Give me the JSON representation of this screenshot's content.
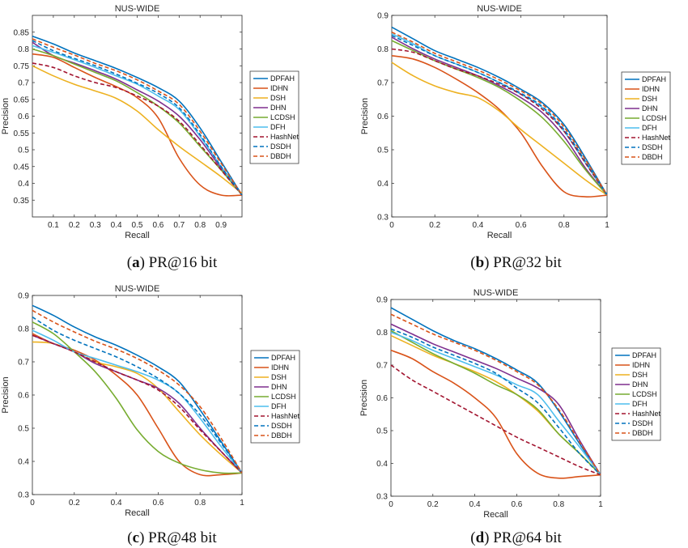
{
  "colors": {
    "DPFAH": "#0072BD",
    "IDHN": "#D95319",
    "DSH": "#EDB120",
    "DHN": "#7E2F8E",
    "LCDSH": "#77AC30",
    "DFH": "#4DBEEE",
    "HashNet": "#A2142F",
    "DSDH": "#0072BD",
    "DBDH": "#D95319"
  },
  "dashed": [
    "HashNet",
    "DSDH",
    "DBDH"
  ],
  "captions": [
    {
      "letter": "a",
      "text": "PR@16 bit"
    },
    {
      "letter": "b",
      "text": "PR@32 bit"
    },
    {
      "letter": "c",
      "text": "PR@48 bit"
    },
    {
      "letter": "d",
      "text": "PR@64 bit"
    }
  ],
  "chart_data": [
    {
      "type": "line",
      "title": "NUS-WIDE",
      "xlabel": "Recall",
      "ylabel": "Precision",
      "xlim": [
        0,
        1
      ],
      "ylim": [
        0.3,
        0.9
      ],
      "xticks": [
        0.1,
        0.2,
        0.3,
        0.4,
        0.5,
        0.6,
        0.7,
        0.8,
        0.9
      ],
      "xtick_labels": [
        "0.1",
        "0.2",
        "0.3",
        "0.4",
        "0.5",
        "0.6",
        "0.7",
        "0.8",
        "0.9"
      ],
      "yticks": [
        0.35,
        0.4,
        0.45,
        0.5,
        0.55,
        0.6,
        0.65,
        0.7,
        0.75,
        0.8,
        0.85
      ],
      "ytick_labels": [
        "0.35",
        "0.4",
        "0.45",
        "0.5",
        "0.55",
        "0.6",
        "0.65",
        "0.7",
        "0.75",
        "0.8",
        "0.85"
      ],
      "legend": "right",
      "x": [
        0,
        0.1,
        0.2,
        0.3,
        0.4,
        0.5,
        0.6,
        0.7,
        0.8,
        0.9,
        1.0
      ],
      "series": [
        {
          "name": "DPFAH",
          "values": [
            0.838,
            0.815,
            0.788,
            0.765,
            0.742,
            0.715,
            0.685,
            0.645,
            0.565,
            0.465,
            0.365
          ]
        },
        {
          "name": "IDHN",
          "values": [
            0.785,
            0.775,
            0.745,
            0.715,
            0.688,
            0.655,
            0.595,
            0.475,
            0.395,
            0.365,
            0.365
          ]
        },
        {
          "name": "DSH",
          "values": [
            0.75,
            0.72,
            0.695,
            0.675,
            0.653,
            0.615,
            0.56,
            0.51,
            0.465,
            0.42,
            0.37
          ]
        },
        {
          "name": "DHN",
          "values": [
            0.82,
            0.78,
            0.758,
            0.735,
            0.71,
            0.678,
            0.645,
            0.6,
            0.53,
            0.445,
            0.365
          ]
        },
        {
          "name": "LCDSH",
          "values": [
            0.8,
            0.78,
            0.755,
            0.73,
            0.705,
            0.67,
            0.63,
            0.58,
            0.51,
            0.44,
            0.365
          ]
        },
        {
          "name": "DFH",
          "values": [
            0.81,
            0.79,
            0.768,
            0.745,
            0.72,
            0.695,
            0.66,
            0.62,
            0.54,
            0.45,
            0.365
          ]
        },
        {
          "name": "HashNet",
          "values": [
            0.758,
            0.745,
            0.72,
            0.7,
            0.685,
            0.66,
            0.63,
            0.585,
            0.515,
            0.44,
            0.365
          ]
        },
        {
          "name": "DSDH",
          "values": [
            0.825,
            0.795,
            0.772,
            0.75,
            0.725,
            0.698,
            0.668,
            0.625,
            0.545,
            0.45,
            0.365
          ]
        },
        {
          "name": "DBDH",
          "values": [
            0.83,
            0.805,
            0.782,
            0.757,
            0.735,
            0.708,
            0.675,
            0.635,
            0.555,
            0.46,
            0.365
          ]
        }
      ]
    },
    {
      "type": "line",
      "title": "NUS-WIDE",
      "xlabel": "Recall",
      "ylabel": "Precision",
      "xlim": [
        0,
        1
      ],
      "ylim": [
        0.3,
        0.9
      ],
      "xticks": [
        0,
        0.2,
        0.4,
        0.6,
        0.8,
        1
      ],
      "xtick_labels": [
        "0",
        "0.2",
        "0.4",
        "0.6",
        "0.8",
        "1"
      ],
      "yticks": [
        0.3,
        0.4,
        0.5,
        0.6,
        0.7,
        0.8,
        0.9
      ],
      "ytick_labels": [
        "0.3",
        "0.4",
        "0.5",
        "0.6",
        "0.7",
        "0.8",
        "0.9"
      ],
      "legend": "right",
      "x": [
        0,
        0.1,
        0.2,
        0.3,
        0.4,
        0.5,
        0.6,
        0.7,
        0.8,
        0.9,
        1.0
      ],
      "series": [
        {
          "name": "DPFAH",
          "values": [
            0.865,
            0.83,
            0.795,
            0.77,
            0.745,
            0.715,
            0.68,
            0.64,
            0.575,
            0.475,
            0.365
          ]
        },
        {
          "name": "IDHN",
          "values": [
            0.78,
            0.77,
            0.745,
            0.71,
            0.67,
            0.62,
            0.55,
            0.45,
            0.375,
            0.36,
            0.365
          ]
        },
        {
          "name": "DSH",
          "values": [
            0.76,
            0.72,
            0.69,
            0.67,
            0.655,
            0.615,
            0.56,
            0.51,
            0.46,
            0.41,
            0.365
          ]
        },
        {
          "name": "DHN",
          "values": [
            0.835,
            0.8,
            0.77,
            0.745,
            0.72,
            0.69,
            0.655,
            0.61,
            0.54,
            0.445,
            0.365
          ]
        },
        {
          "name": "LCDSH",
          "values": [
            0.825,
            0.795,
            0.765,
            0.74,
            0.715,
            0.685,
            0.645,
            0.595,
            0.525,
            0.44,
            0.365
          ]
        },
        {
          "name": "DFH",
          "values": [
            0.845,
            0.815,
            0.78,
            0.755,
            0.73,
            0.7,
            0.665,
            0.625,
            0.555,
            0.46,
            0.365
          ]
        },
        {
          "name": "HashNet",
          "values": [
            0.8,
            0.79,
            0.765,
            0.74,
            0.72,
            0.695,
            0.665,
            0.62,
            0.555,
            0.46,
            0.365
          ]
        },
        {
          "name": "DSDH",
          "values": [
            0.84,
            0.81,
            0.78,
            0.755,
            0.73,
            0.7,
            0.668,
            0.628,
            0.56,
            0.465,
            0.365
          ]
        },
        {
          "name": "DBDH",
          "values": [
            0.85,
            0.82,
            0.787,
            0.762,
            0.737,
            0.708,
            0.675,
            0.635,
            0.568,
            0.47,
            0.365
          ]
        }
      ]
    },
    {
      "type": "line",
      "title": "NUS-WIDE",
      "xlabel": "Recall",
      "ylabel": "Precision",
      "xlim": [
        0,
        1
      ],
      "ylim": [
        0.3,
        0.9
      ],
      "xticks": [
        0,
        0.2,
        0.4,
        0.6,
        0.8,
        1
      ],
      "xtick_labels": [
        "0",
        "0.2",
        "0.4",
        "0.6",
        "0.8",
        "1"
      ],
      "yticks": [
        0.3,
        0.4,
        0.5,
        0.6,
        0.7,
        0.8,
        0.9
      ],
      "ytick_labels": [
        "0.3",
        "0.4",
        "0.5",
        "0.6",
        "0.7",
        "0.8",
        "0.9"
      ],
      "legend": "right",
      "x": [
        0,
        0.1,
        0.2,
        0.3,
        0.4,
        0.5,
        0.6,
        0.7,
        0.8,
        0.9,
        1.0
      ],
      "series": [
        {
          "name": "DPFAH",
          "values": [
            0.87,
            0.84,
            0.805,
            0.775,
            0.75,
            0.72,
            0.685,
            0.64,
            0.555,
            0.46,
            0.365
          ]
        },
        {
          "name": "IDHN",
          "values": [
            0.785,
            0.755,
            0.735,
            0.705,
            0.66,
            0.6,
            0.5,
            0.4,
            0.36,
            0.36,
            0.365
          ]
        },
        {
          "name": "DSH",
          "values": [
            0.76,
            0.755,
            0.73,
            0.7,
            0.685,
            0.665,
            0.62,
            0.55,
            0.48,
            0.42,
            0.365
          ]
        },
        {
          "name": "DHN",
          "values": [
            0.78,
            0.755,
            0.73,
            0.695,
            0.67,
            0.645,
            0.62,
            0.575,
            0.5,
            0.43,
            0.365
          ]
        },
        {
          "name": "LCDSH",
          "values": [
            0.82,
            0.785,
            0.73,
            0.67,
            0.59,
            0.495,
            0.43,
            0.395,
            0.375,
            0.365,
            0.365
          ]
        },
        {
          "name": "DFH",
          "values": [
            0.795,
            0.765,
            0.73,
            0.71,
            0.69,
            0.67,
            0.645,
            0.605,
            0.53,
            0.445,
            0.365
          ]
        },
        {
          "name": "HashNet",
          "values": [
            0.78,
            0.755,
            0.73,
            0.7,
            0.67,
            0.645,
            0.615,
            0.565,
            0.495,
            0.43,
            0.365
          ]
        },
        {
          "name": "DSDH",
          "values": [
            0.835,
            0.795,
            0.765,
            0.74,
            0.715,
            0.685,
            0.65,
            0.605,
            0.54,
            0.455,
            0.365
          ]
        },
        {
          "name": "DBDH",
          "values": [
            0.855,
            0.82,
            0.79,
            0.762,
            0.738,
            0.71,
            0.675,
            0.63,
            0.565,
            0.47,
            0.365
          ]
        }
      ]
    },
    {
      "type": "line",
      "title": "NUS-WIDE",
      "xlabel": "Recall",
      "ylabel": "Precision",
      "xlim": [
        0,
        1
      ],
      "ylim": [
        0.3,
        0.9
      ],
      "xticks": [
        0,
        0.2,
        0.4,
        0.6,
        0.8,
        1
      ],
      "xtick_labels": [
        "0",
        "0.2",
        "0.4",
        "0.6",
        "0.8",
        "1"
      ],
      "yticks": [
        0.3,
        0.4,
        0.5,
        0.6,
        0.7,
        0.8,
        0.9
      ],
      "ytick_labels": [
        "0.3",
        "0.4",
        "0.5",
        "0.6",
        "0.7",
        "0.8",
        "0.9"
      ],
      "legend": "right",
      "x": [
        0,
        0.1,
        0.2,
        0.3,
        0.4,
        0.5,
        0.6,
        0.7,
        0.8,
        0.9,
        1.0
      ],
      "series": [
        {
          "name": "DPFAH",
          "values": [
            0.875,
            0.84,
            0.805,
            0.775,
            0.75,
            0.72,
            0.685,
            0.645,
            0.56,
            0.46,
            0.365
          ]
        },
        {
          "name": "IDHN",
          "values": [
            0.745,
            0.72,
            0.68,
            0.645,
            0.6,
            0.54,
            0.43,
            0.37,
            0.355,
            0.36,
            0.365
          ]
        },
        {
          "name": "DSH",
          "values": [
            0.79,
            0.76,
            0.73,
            0.705,
            0.68,
            0.65,
            0.61,
            0.56,
            0.49,
            0.43,
            0.365
          ]
        },
        {
          "name": "DHN",
          "values": [
            0.825,
            0.795,
            0.765,
            0.74,
            0.715,
            0.69,
            0.66,
            0.63,
            0.58,
            0.47,
            0.365
          ]
        },
        {
          "name": "LCDSH",
          "values": [
            0.805,
            0.77,
            0.735,
            0.705,
            0.675,
            0.64,
            0.61,
            0.565,
            0.49,
            0.43,
            0.365
          ]
        },
        {
          "name": "DFH",
          "values": [
            0.8,
            0.775,
            0.745,
            0.72,
            0.695,
            0.67,
            0.64,
            0.61,
            0.53,
            0.45,
            0.365
          ]
        },
        {
          "name": "HashNet",
          "values": [
            0.7,
            0.655,
            0.62,
            0.585,
            0.55,
            0.515,
            0.48,
            0.45,
            0.42,
            0.39,
            0.365
          ]
        },
        {
          "name": "DSDH",
          "values": [
            0.81,
            0.785,
            0.755,
            0.73,
            0.705,
            0.675,
            0.63,
            0.585,
            0.51,
            0.43,
            0.365
          ]
        },
        {
          "name": "DBDH",
          "values": [
            0.855,
            0.825,
            0.795,
            0.77,
            0.745,
            0.715,
            0.68,
            0.64,
            0.565,
            0.465,
            0.365
          ]
        }
      ]
    }
  ]
}
